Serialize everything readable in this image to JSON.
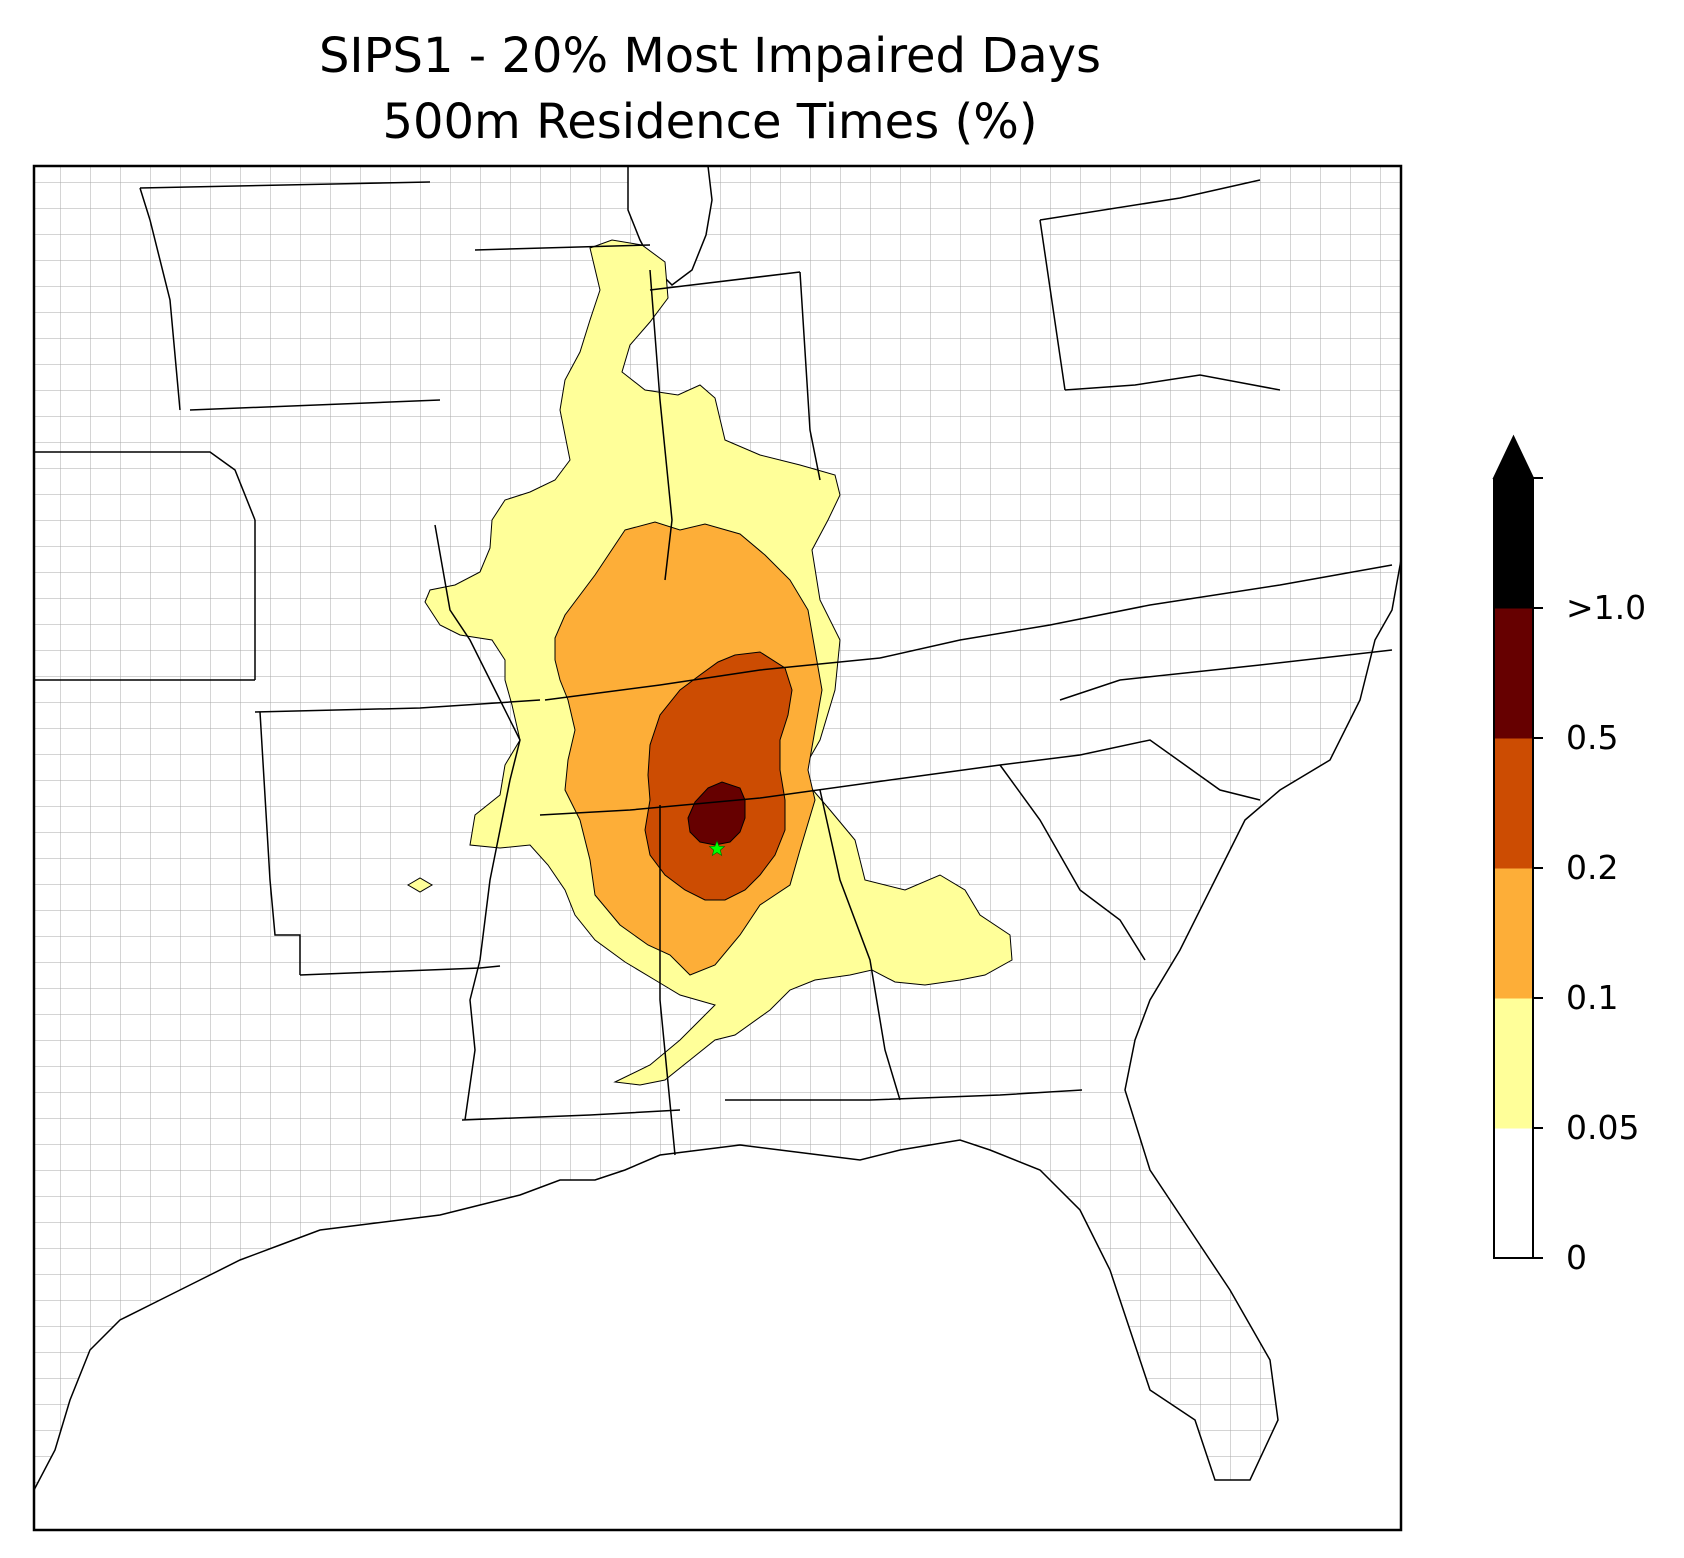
{
  "title": {
    "line1": "SIPS1 - 20% Most Impaired Days",
    "line2": "500m Residence Times (%)"
  },
  "colorbar": {
    "ticks": [
      "0",
      "0.05",
      "0.1",
      "0.2",
      "0.5",
      ">1.0"
    ],
    "bins": [
      {
        "range": "0-0.05",
        "color": "#ffffff"
      },
      {
        "range": "0.05-0.1",
        "color": "#ffff99"
      },
      {
        "range": "0.1-0.2",
        "color": "#fdae38"
      },
      {
        "range": "0.2-0.5",
        "color": "#cc4c02"
      },
      {
        "range": "0.5-1.0",
        "color": "#660000"
      },
      {
        "range": ">1.0",
        "color": "#000000"
      }
    ],
    "extend": "max"
  },
  "map": {
    "background_color": "#ffffff",
    "county_line_color": "#aaaaaa",
    "state_line_color": "#000000",
    "source_marker": {
      "shape": "star",
      "color": "#00ff00"
    }
  }
}
